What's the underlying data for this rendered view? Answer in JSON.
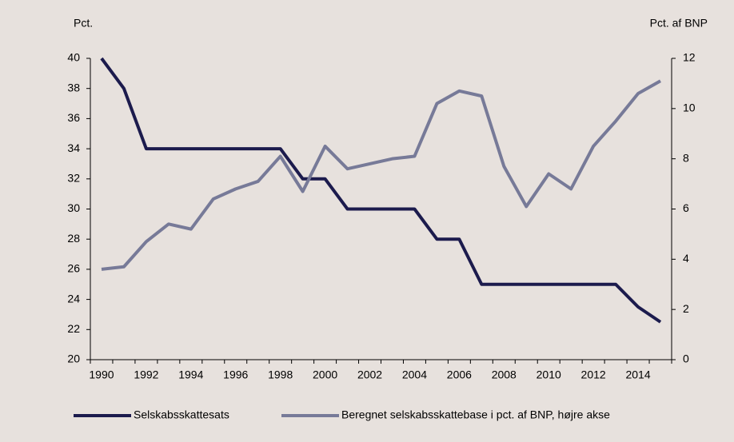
{
  "chart_data": {
    "type": "line",
    "y_label": "Pct.",
    "y2_label": "Pct. af BNP",
    "categories": [
      "1990",
      null,
      "1992",
      null,
      "1994",
      null,
      "1996",
      null,
      "1998",
      null,
      "2000",
      null,
      "2002",
      null,
      "2004",
      null,
      "2006",
      null,
      "2008",
      null,
      "2010",
      null,
      "2012",
      null,
      "2014",
      null
    ],
    "ylim": [
      20,
      40
    ],
    "yticks": [
      20,
      22,
      24,
      26,
      28,
      30,
      32,
      34,
      36,
      38,
      40
    ],
    "y2lim": [
      0,
      12
    ],
    "y2ticks": [
      0,
      2,
      4,
      6,
      8,
      10,
      12
    ],
    "series": [
      {
        "name": "Selskabsskattesats",
        "color": "#1c1b4d",
        "values": [
          40,
          38,
          34,
          34,
          34,
          34,
          34,
          34,
          34,
          32,
          32,
          30,
          30,
          30,
          30,
          28,
          28,
          25,
          25,
          25,
          25,
          25,
          25,
          25,
          23.5,
          22.5
        ]
      },
      {
        "name": "Beregnet selskabsskattebase i pct. af BNP, højre akse",
        "color": "#777a98",
        "axis": "y2",
        "values": [
          3.6,
          3.7,
          4.7,
          5.4,
          5.2,
          6.4,
          6.8,
          7.1,
          8.1,
          6.7,
          8.5,
          7.6,
          7.8,
          8.0,
          8.1,
          10.2,
          10.7,
          10.5,
          7.7,
          6.1,
          7.4,
          6.8,
          8.5,
          9.5,
          10.6,
          11.1
        ]
      }
    ],
    "legend": "bottom"
  }
}
